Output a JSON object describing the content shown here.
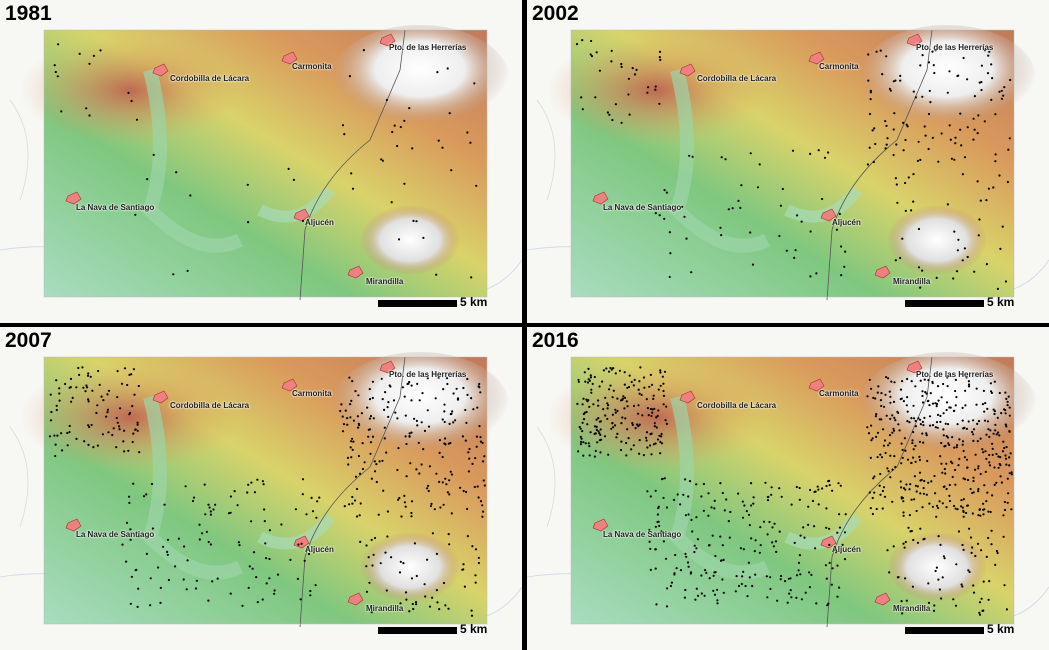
{
  "panels": [
    {
      "year": "1981",
      "density": 1
    },
    {
      "year": "2002",
      "density": 2
    },
    {
      "year": "2007",
      "density": 3
    },
    {
      "year": "2016",
      "density": 4
    }
  ],
  "towns": {
    "t1": "Pto. de las Herrerías",
    "t2": "Carmonita",
    "t3": "Cordobilla de Lácara",
    "t4": "La Nava de Santiago",
    "t5": "Aljucén",
    "t6": "Mirandilla"
  },
  "scale": {
    "label": "5 km"
  },
  "colors": {
    "town_fill": "#f08080",
    "points": "#000000",
    "relief_low": "#8fd0a0",
    "relief_high": "#ffffff"
  }
}
